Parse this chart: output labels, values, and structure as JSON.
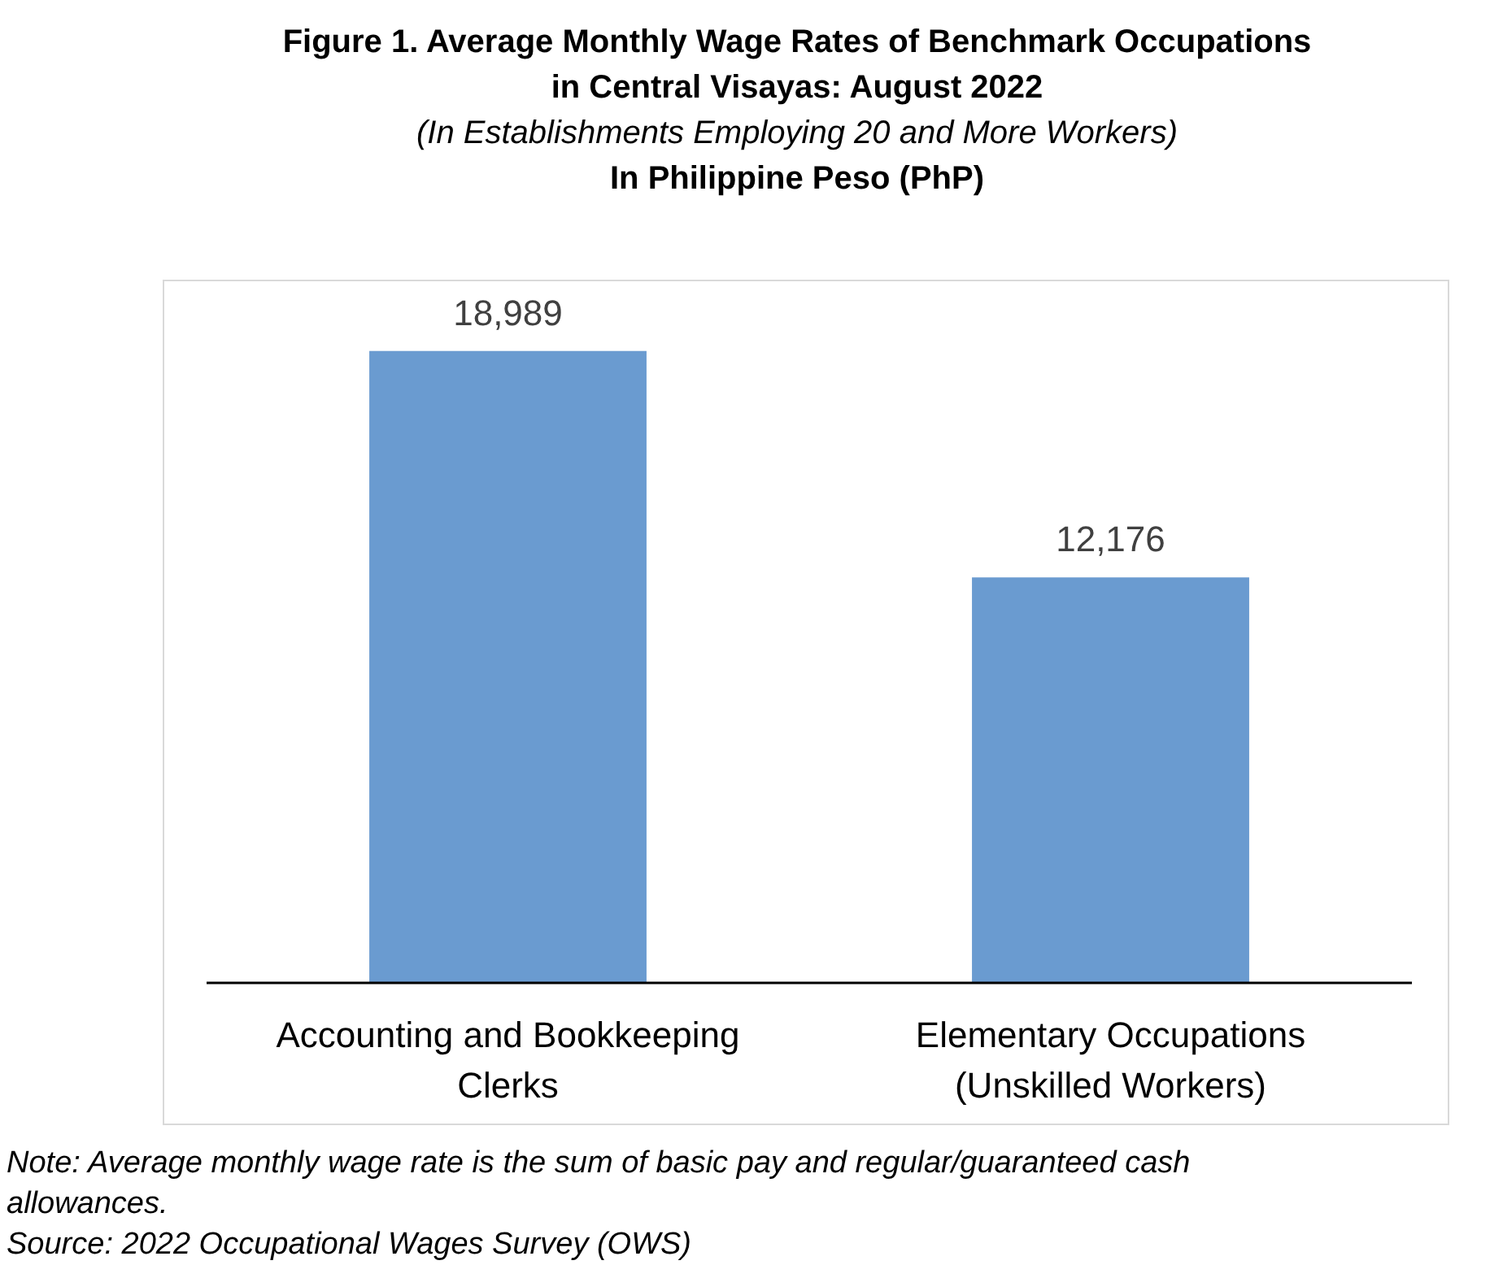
{
  "chart_data": {
    "type": "bar",
    "title": "Figure 1. Average Monthly Wage Rates of Benchmark Occupations\nin Central Visayas:  August 2022",
    "subtitle": "(In Establishments Employing 20 and More Workers)\nIn Philippine Peso (PhP)",
    "categories": [
      "Accounting and Bookkeeping Clerks",
      "Elementary Occupations (Unskilled Workers)"
    ],
    "values": [
      18989,
      12176
    ],
    "color": "#6a9bd0",
    "value_labels": [
      "18,989",
      "12,176"
    ],
    "annotations": [
      "Note: Average monthly wage rate is the sum of basic pay and regular/guaranteed cash allowances.",
      "Source: 2022 Occupational Wages Survey (OWS)"
    ]
  }
}
